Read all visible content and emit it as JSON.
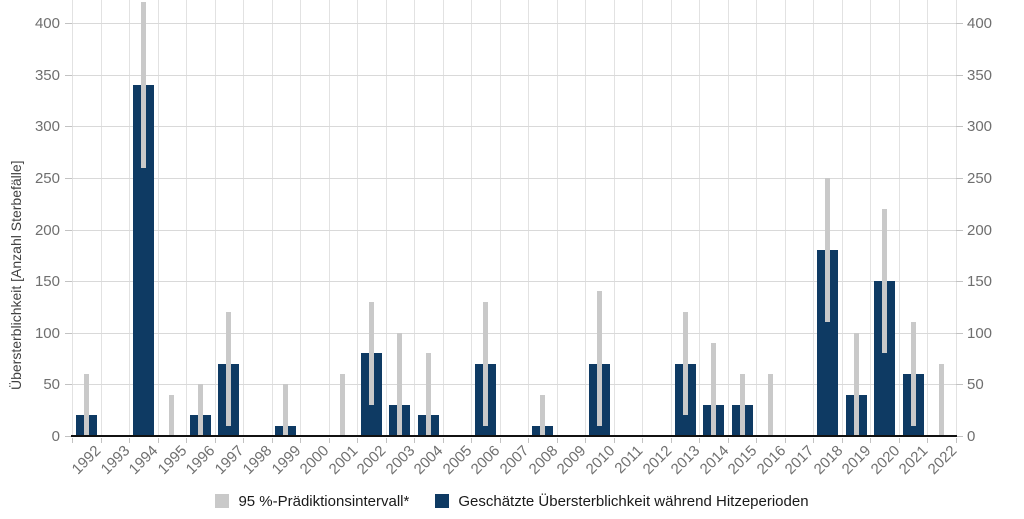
{
  "chart_data": {
    "type": "bar",
    "title": "",
    "xlabel": "",
    "ylabel": "Übersterblichkeit [Anzahl Sterbefälle]",
    "ylim": [
      0,
      420
    ],
    "yticks": [
      0,
      50,
      100,
      150,
      200,
      250,
      300,
      350,
      400
    ],
    "y_axis_sides": [
      "left",
      "right"
    ],
    "grid": true,
    "legend_position": "bottom",
    "categories": [
      "1992",
      "1993",
      "1994",
      "1995",
      "1996",
      "1997",
      "1998",
      "1999",
      "2000",
      "2001",
      "2002",
      "2003",
      "2004",
      "2005",
      "2006",
      "2007",
      "2008",
      "2009",
      "2010",
      "2011",
      "2012",
      "2013",
      "2014",
      "2015",
      "2016",
      "2017",
      "2018",
      "2019",
      "2020",
      "2021",
      "2022"
    ],
    "series": [
      {
        "name": "95 %-Prädiktionsintervall*",
        "type": "interval",
        "color": "#c9c9c9",
        "intervals": [
          [
            0,
            60
          ],
          null,
          [
            260,
            420
          ],
          [
            0,
            40
          ],
          [
            0,
            50
          ],
          [
            10,
            120
          ],
          null,
          [
            0,
            50
          ],
          null,
          [
            0,
            60
          ],
          [
            30,
            130
          ],
          [
            0,
            100
          ],
          [
            0,
            80
          ],
          null,
          [
            10,
            130
          ],
          null,
          [
            0,
            40
          ],
          null,
          [
            10,
            140
          ],
          null,
          null,
          [
            20,
            120
          ],
          [
            0,
            90
          ],
          [
            0,
            60
          ],
          [
            0,
            60
          ],
          null,
          [
            110,
            250
          ],
          [
            0,
            100
          ],
          [
            80,
            220
          ],
          [
            10,
            110
          ],
          [
            0,
            70
          ]
        ]
      },
      {
        "name": "Geschätzte Übersterblichkeit während Hitzeperioden",
        "type": "bar",
        "color": "#0e3a63",
        "values": [
          20,
          0,
          340,
          0,
          20,
          70,
          0,
          10,
          0,
          0,
          80,
          30,
          20,
          0,
          70,
          0,
          10,
          0,
          70,
          0,
          0,
          70,
          30,
          30,
          0,
          0,
          180,
          40,
          150,
          60,
          0
        ]
      }
    ]
  },
  "colors": {
    "bar": "#0e3a63",
    "interval": "#c9c9c9",
    "grid_horizontal": "#d9d9d9",
    "grid_vertical": "#e2e2e2",
    "axis_line": "#111111",
    "tick_mark": "#c2c2c2",
    "tick_label": "#6f6f6f",
    "axis_title": "#404040",
    "legend_text": "#1a1a1a",
    "background": "#ffffff"
  }
}
